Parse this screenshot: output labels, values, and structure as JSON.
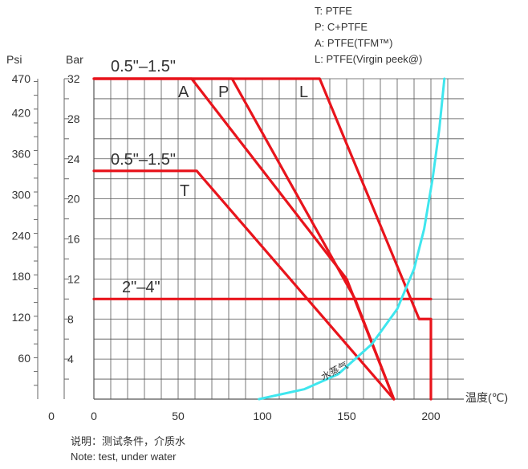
{
  "chart_data": {
    "type": "line",
    "xlabel": "温度(℃)",
    "x_ticks": [
      "0",
      "50",
      "100",
      "150",
      "200"
    ],
    "xlim": [
      0,
      200
    ],
    "y_bar_label": "Bar",
    "y_bar_ticks": [
      "4",
      "8",
      "12",
      "16",
      "20",
      "24",
      "28",
      "32"
    ],
    "y_psi_label": "Psi",
    "y_psi_ticks": [
      "60",
      "120",
      "180",
      "240",
      "300",
      "360",
      "420",
      "470"
    ],
    "y_psi_zero": "0",
    "ylim_bar": [
      0,
      32
    ],
    "grid": true,
    "series": [
      {
        "name": "A",
        "values": [
          [
            0,
            32
          ],
          [
            58,
            32
          ],
          [
            150,
            12
          ],
          [
            178,
            0
          ]
        ]
      },
      {
        "name": "P",
        "values": [
          [
            0,
            32
          ],
          [
            82,
            32
          ],
          [
            155,
            10
          ],
          [
            178,
            0
          ]
        ]
      },
      {
        "name": "L",
        "values": [
          [
            0,
            32
          ],
          [
            134,
            32
          ],
          [
            193,
            8
          ],
          [
            200,
            8
          ],
          [
            200,
            0
          ]
        ]
      },
      {
        "name": "T",
        "values": [
          [
            0,
            22.8
          ],
          [
            61,
            22.8
          ],
          [
            178,
            0
          ]
        ]
      },
      {
        "name": "2\"–4\"",
        "values": [
          [
            0,
            10
          ],
          [
            200,
            10
          ]
        ]
      },
      {
        "name": "水蒸气",
        "values": [
          [
            98,
            0
          ],
          [
            125,
            1
          ],
          [
            145,
            2.5
          ],
          [
            165,
            5.5
          ],
          [
            180,
            9
          ],
          [
            190,
            13
          ],
          [
            196,
            17
          ],
          [
            201,
            22
          ],
          [
            205,
            27
          ],
          [
            208,
            32
          ]
        ]
      }
    ],
    "annotations": {
      "size_top": "0.5\"–1.5\"",
      "size_mid": "0.5\"–1.5\"",
      "size_low": "2\"–4\"",
      "A": "A",
      "P": "P",
      "L": "L",
      "T": "T",
      "steam": "水蒸气"
    }
  },
  "legend": {
    "items": [
      "T: PTFE",
      "P: C+PTFE",
      "A: PTFE(TFM™)",
      "L: PTFE(Virgin peek@)"
    ]
  },
  "note": {
    "line1": "说明：测试条件，介质水",
    "line2": "Note: test, under water"
  },
  "colors": {
    "red": "#e8141c",
    "cyan": "#3fe6ee",
    "grid": "#555555",
    "text": "#333333"
  }
}
